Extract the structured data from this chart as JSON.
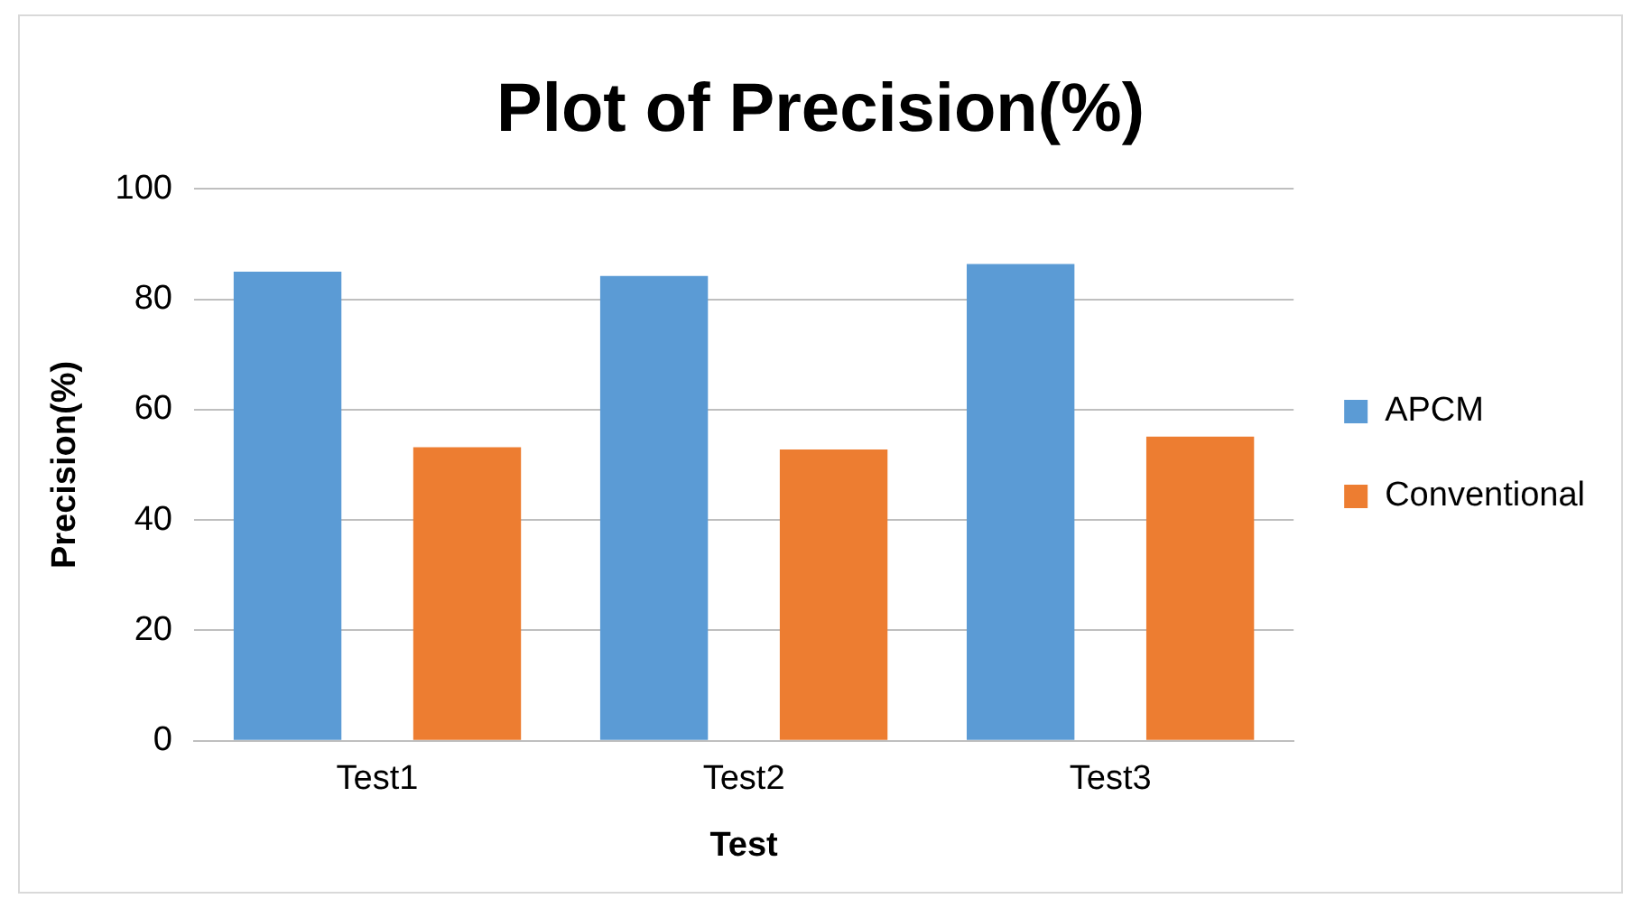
{
  "chart_data": {
    "type": "bar",
    "title": "Plot of Precision(%)",
    "xlabel": "Test",
    "ylabel": "Precision(%)",
    "categories": [
      "Test1",
      "Test2",
      "Test3"
    ],
    "series": [
      {
        "name": "APCM",
        "color": "#5b9bd5",
        "values": [
          85,
          84.2,
          86.4
        ]
      },
      {
        "name": "Conventional",
        "color": "#ed7d31",
        "values": [
          53.2,
          52.8,
          55.1
        ]
      }
    ],
    "ylim": [
      0,
      100
    ],
    "yticks": [
      0,
      20,
      40,
      60,
      80,
      100
    ],
    "grid": "y",
    "legend": "right"
  }
}
